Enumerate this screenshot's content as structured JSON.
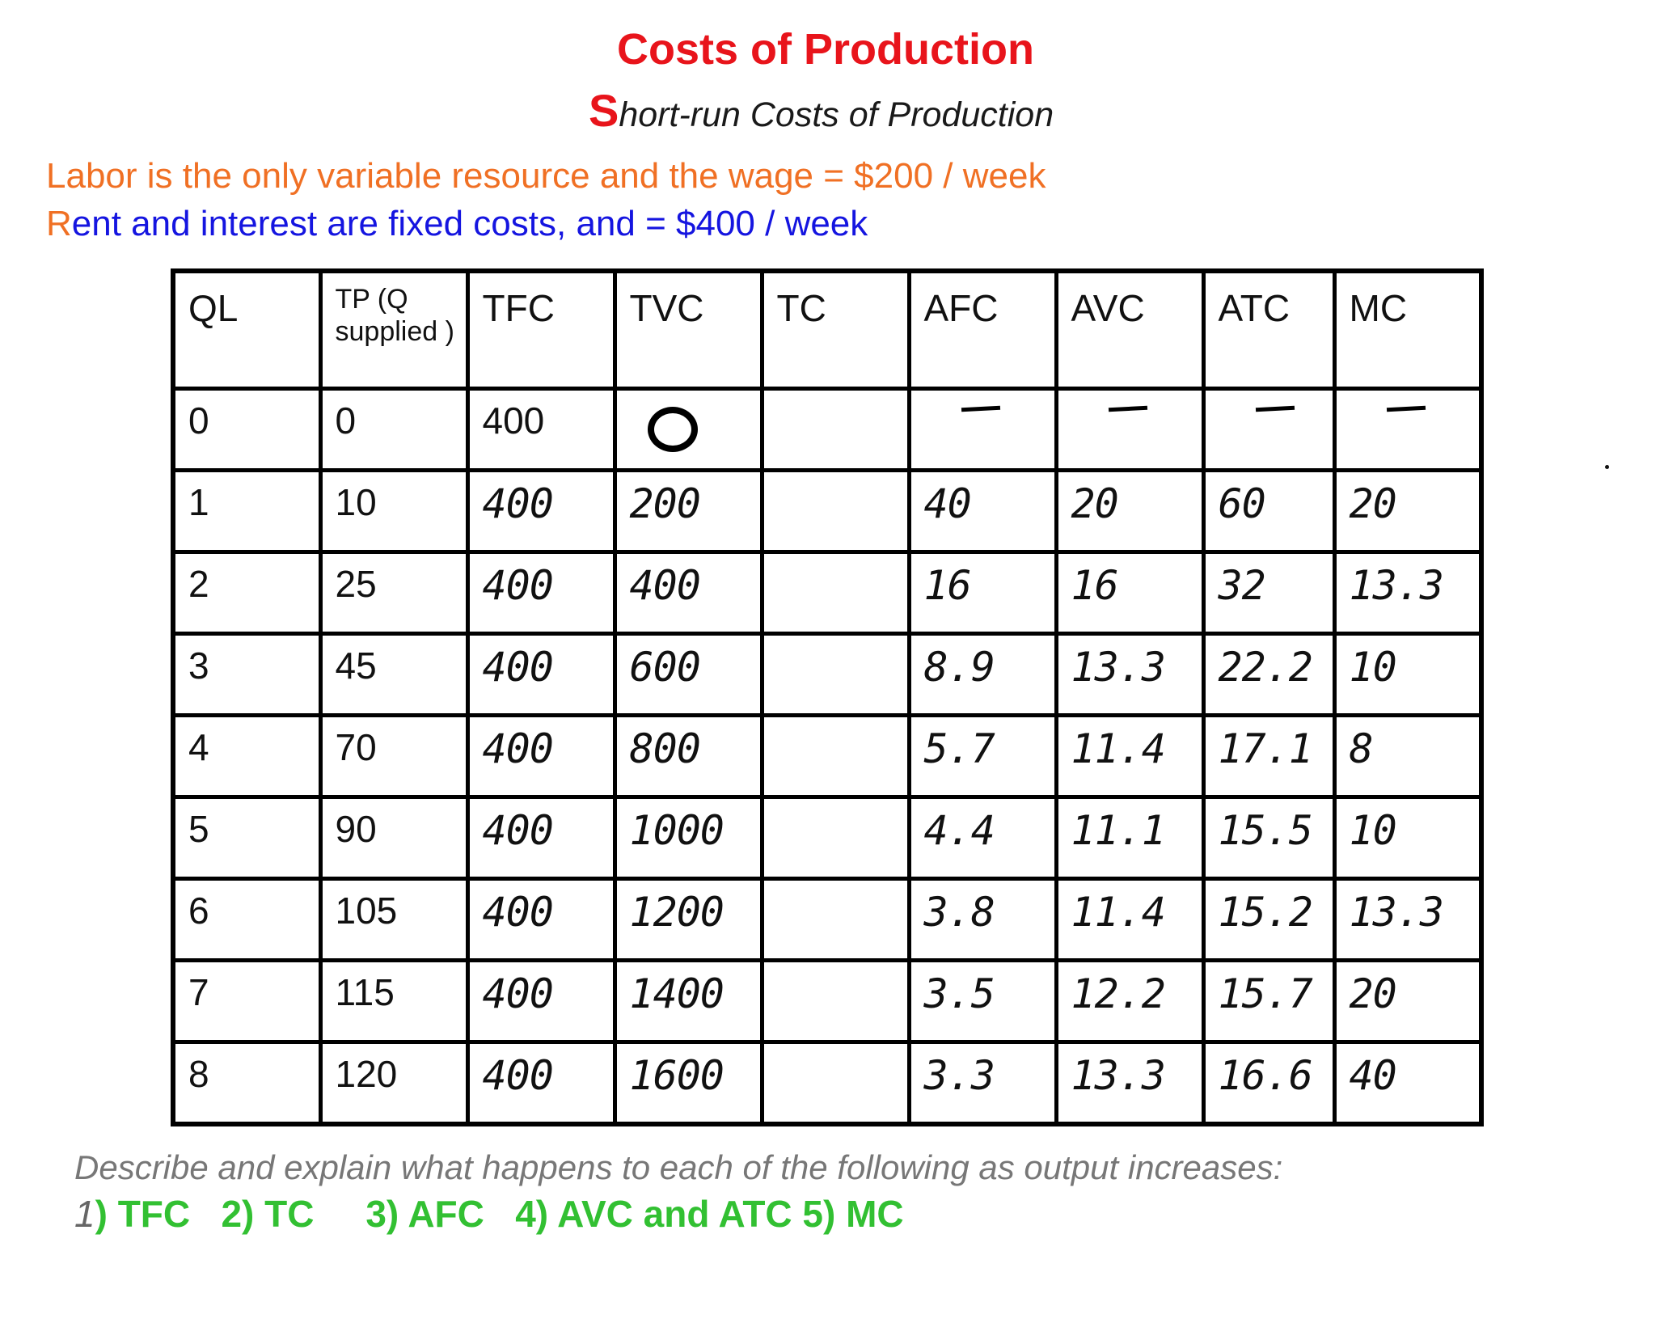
{
  "header": {
    "title": "Costs of Production",
    "subtitle_cap": "S",
    "subtitle_rest": "hort-run Costs of Production"
  },
  "info": {
    "labor_line": "Labor is the only variable resource and the wage = $200 / week",
    "rent_first_letter": "R",
    "rent_rest": "ent and interest are fixed costs, and = $400 / week"
  },
  "table": {
    "headers": [
      "QL",
      "TP  (Q supplied )",
      "TFC",
      "TVC",
      "TC",
      "AFC",
      "AVC",
      "ATC",
      "MC"
    ],
    "rows": [
      {
        "ql": "0",
        "tp": "0",
        "tfc": "400",
        "tvc": "0",
        "tc": "",
        "afc": "",
        "avc": "",
        "atc": "",
        "mc": ""
      },
      {
        "ql": "1",
        "tp": "10",
        "tfc": "400",
        "tvc": "200",
        "tc": "",
        "afc": "40",
        "avc": "20",
        "atc": "60",
        "mc": "20"
      },
      {
        "ql": "2",
        "tp": "25",
        "tfc": "400",
        "tvc": "400",
        "tc": "",
        "afc": "16",
        "avc": "16",
        "atc": "32",
        "mc": "13.3"
      },
      {
        "ql": "3",
        "tp": "45",
        "tfc": "400",
        "tvc": "600",
        "tc": "",
        "afc": "8.9",
        "avc": "13.3",
        "atc": "22.2",
        "mc": "10"
      },
      {
        "ql": "4",
        "tp": "70",
        "tfc": "400",
        "tvc": "800",
        "tc": "",
        "afc": "5.7",
        "avc": "11.4",
        "atc": "17.1",
        "mc": "8"
      },
      {
        "ql": "5",
        "tp": "90",
        "tfc": "400",
        "tvc": "1000",
        "tc": "",
        "afc": "4.4",
        "avc": "11.1",
        "atc": "15.5",
        "mc": "10"
      },
      {
        "ql": "6",
        "tp": "105",
        "tfc": "400",
        "tvc": "1200",
        "tc": "",
        "afc": "3.8",
        "avc": "11.4",
        "atc": "15.2",
        "mc": "13.3"
      },
      {
        "ql": "7",
        "tp": "115",
        "tfc": "400",
        "tvc": "1400",
        "tc": "",
        "afc": "3.5",
        "avc": "12.2",
        "atc": "15.7",
        "mc": "20"
      },
      {
        "ql": "8",
        "tp": "120",
        "tfc": "400",
        "tvc": "1600",
        "tc": "",
        "afc": "3.3",
        "avc": "13.3",
        "atc": "16.6",
        "mc": "40"
      }
    ]
  },
  "footer": {
    "question": "Describe and explain what happens to each of the following as output increases:",
    "answer_one": "1",
    "answers_rest": ") TFC   2) TC     3) AFC   4) AVC and ATC 5) MC"
  }
}
